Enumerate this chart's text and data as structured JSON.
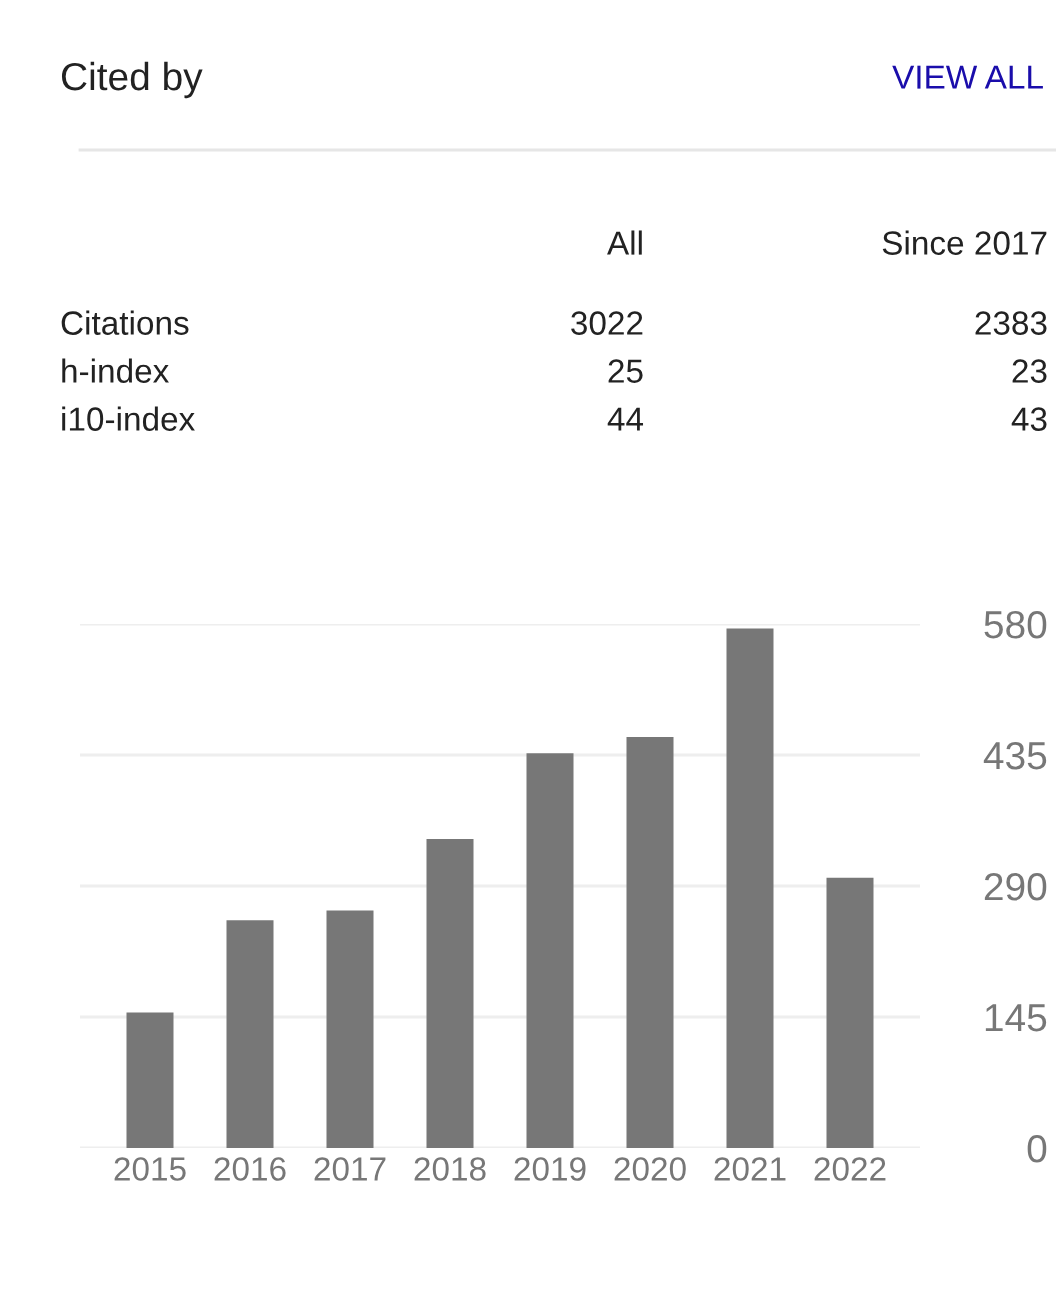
{
  "chart_data": [
    {
      "type": "other",
      "title": "Cited by",
      "annotations": [
        "VIEW ALL"
      ],
      "data_labels": true,
      "categories": [
        "Citations",
        "h-index",
        "i10-index"
      ],
      "series": [
        {
          "name": "All",
          "values": [
            3022,
            25,
            44
          ]
        },
        {
          "name": "Since 2017",
          "values": [
            2383,
            23,
            43
          ]
        }
      ]
    },
    {
      "type": "bar",
      "categories": [
        "2015",
        "2016",
        "2017",
        "2018",
        "2019",
        "2020",
        "2021",
        "2022"
      ],
      "values": [
        150,
        252,
        263,
        342,
        437,
        455,
        575,
        299
      ],
      "color": "#777777",
      "ylim": [
        0,
        580
      ],
      "yticks": [
        0,
        145,
        290,
        435,
        580
      ],
      "grid": "y"
    }
  ]
}
